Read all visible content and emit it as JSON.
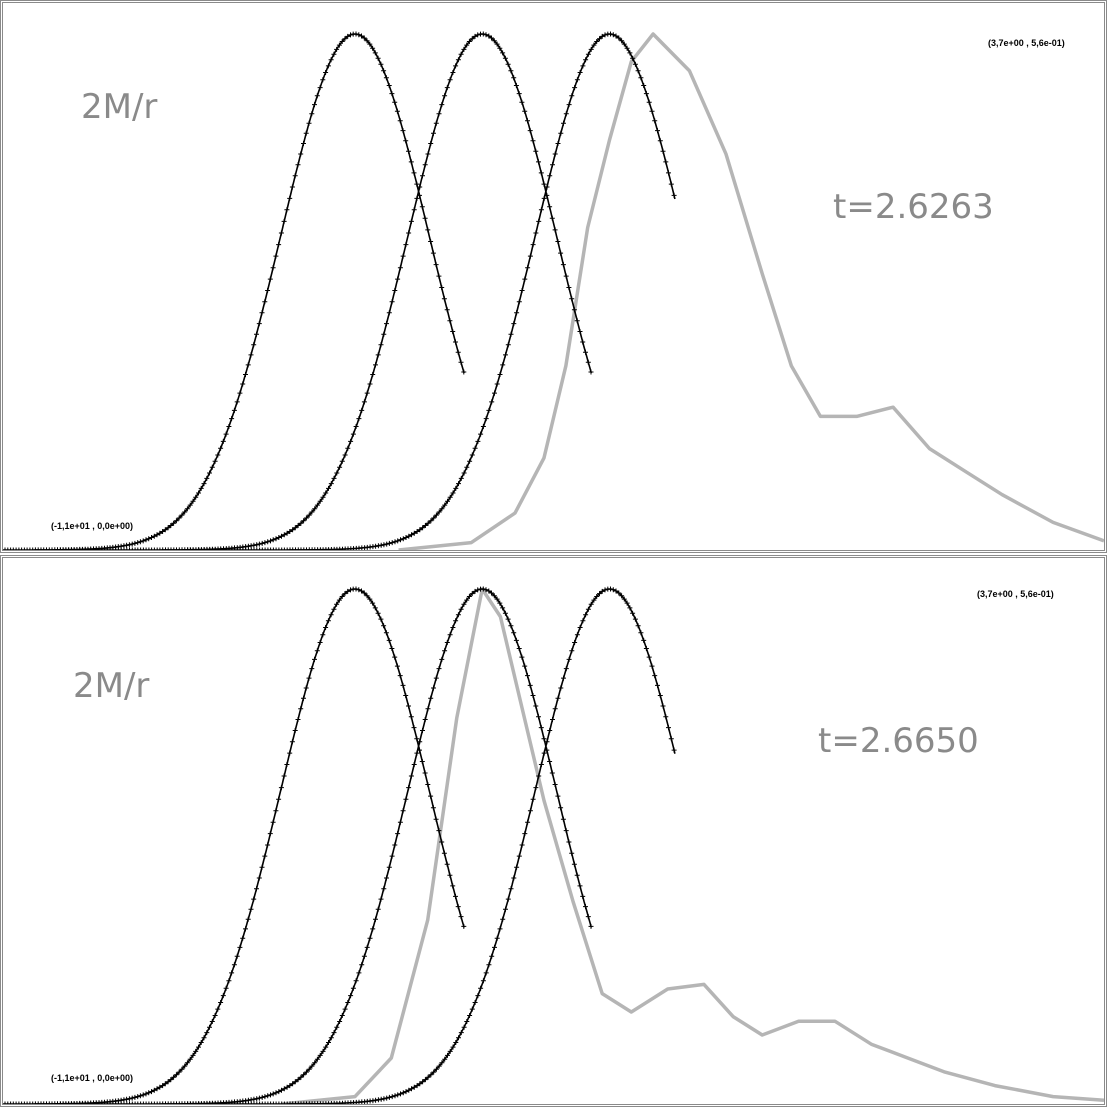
{
  "chart_data": [
    {
      "type": "line",
      "title": "2M/r",
      "annotation": "t=2.6263",
      "corner_min_label": "(-1,1e+01 , 0,0e+00)",
      "corner_max_label": "(3,7e+00 , 5,6e-01)",
      "xlim": [
        -11,
        3.7
      ],
      "ylim": [
        0,
        0.56
      ],
      "grid": false,
      "series": [
        {
          "style": "marked",
          "color": "#000000",
          "peak_x": -6.6,
          "width": 1.45,
          "x_end": -5.1
        },
        {
          "style": "marked",
          "color": "#000000",
          "peak_x": -4.85,
          "width": 1.45,
          "x_end": -3.35
        },
        {
          "style": "marked",
          "color": "#000000",
          "peak_x": -3.1,
          "width": 1.45,
          "x_end": -2.2
        },
        {
          "style": "line",
          "color": "#b5b5b5",
          "x": [
            -6.0,
            -5.0,
            -4.4,
            -4.0,
            -3.7,
            -3.4,
            -3.1,
            -2.8,
            -2.5,
            -2.0,
            -1.5,
            -1.0,
            -0.6,
            -0.2,
            0.3,
            0.8,
            1.3,
            1.8,
            2.3,
            3.0,
            3.7
          ],
          "y": [
            0.0,
            0.008,
            0.04,
            0.1,
            0.2,
            0.35,
            0.445,
            0.53,
            0.56,
            0.52,
            0.43,
            0.3,
            0.2,
            0.145,
            0.145,
            0.155,
            0.11,
            0.085,
            0.06,
            0.03,
            0.01
          ]
        }
      ]
    },
    {
      "type": "line",
      "title": "2M/r",
      "annotation": "t=2.6650",
      "corner_min_label": "(-1,1e+01 , 0,0e+00)",
      "corner_max_label": "(3,7e+00 , 5,6e-01)",
      "xlim": [
        -11,
        3.7
      ],
      "ylim": [
        0,
        0.56
      ],
      "grid": false,
      "series": [
        {
          "style": "marked",
          "color": "#000000",
          "peak_x": -6.6,
          "width": 1.45,
          "x_end": -5.1
        },
        {
          "style": "marked",
          "color": "#000000",
          "peak_x": -4.85,
          "width": 1.45,
          "x_end": -3.35
        },
        {
          "style": "marked",
          "color": "#000000",
          "peak_x": -3.1,
          "width": 1.45,
          "x_end": -2.2
        },
        {
          "style": "line",
          "color": "#b5b5b5",
          "x": [
            -7.6,
            -6.6,
            -6.1,
            -5.6,
            -5.2,
            -4.85,
            -4.6,
            -4.3,
            -4.0,
            -3.6,
            -3.2,
            -2.8,
            -2.3,
            -1.8,
            -1.4,
            -1.0,
            -0.5,
            0.0,
            0.5,
            1.0,
            1.5,
            2.2,
            3.0,
            3.7
          ],
          "y": [
            0.0,
            0.008,
            0.05,
            0.2,
            0.42,
            0.56,
            0.53,
            0.43,
            0.33,
            0.22,
            0.12,
            0.1,
            0.125,
            0.13,
            0.095,
            0.075,
            0.09,
            0.09,
            0.065,
            0.05,
            0.035,
            0.02,
            0.008,
            0.004
          ]
        }
      ]
    }
  ]
}
